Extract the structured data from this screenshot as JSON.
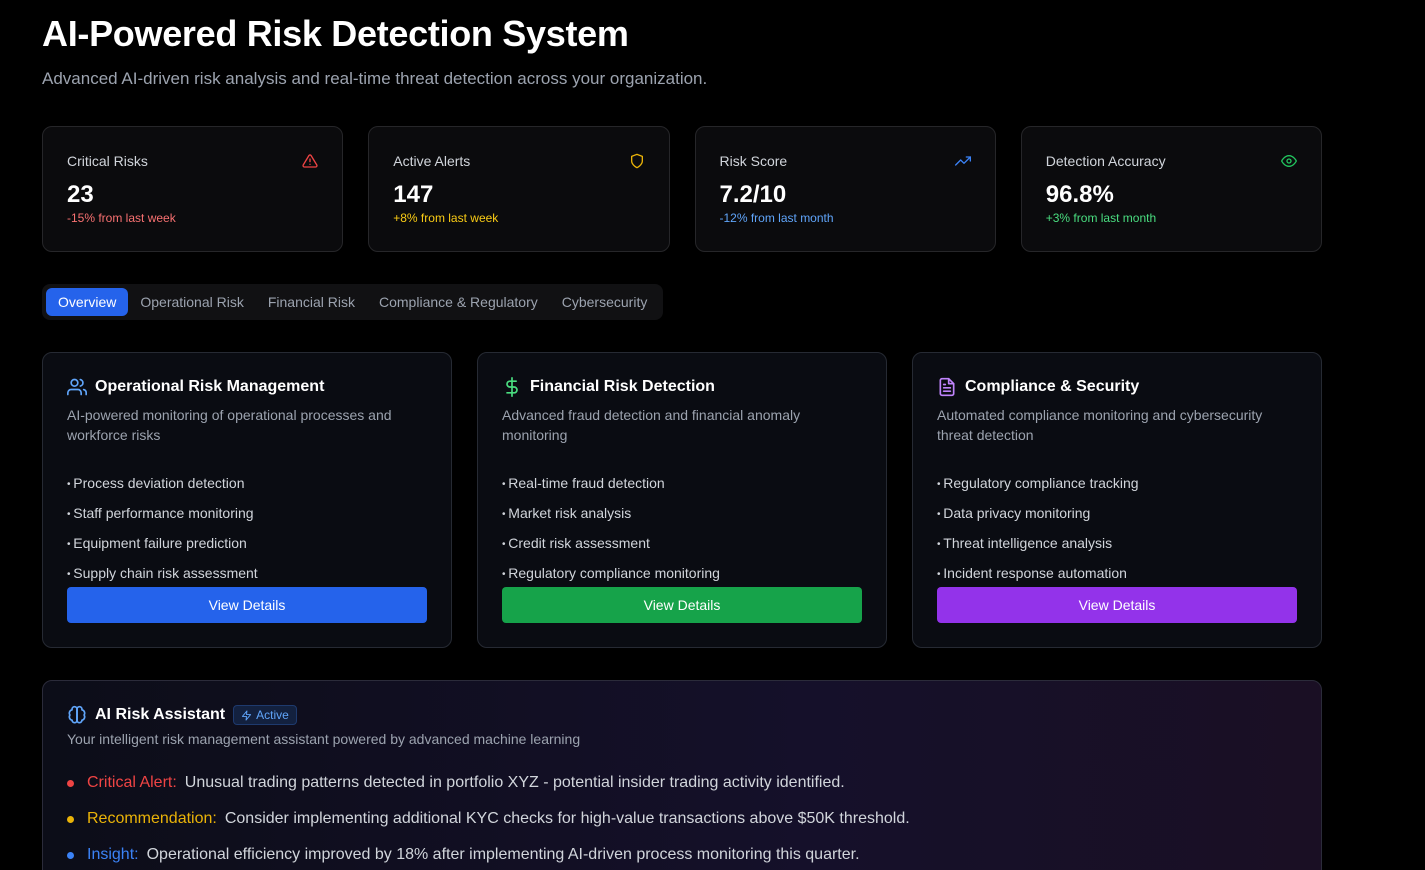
{
  "header": {
    "title": "AI-Powered Risk Detection System",
    "subtitle": "Advanced AI-driven risk analysis and real-time threat detection across your organization."
  },
  "stats": [
    {
      "label": "Critical Risks",
      "value": "23",
      "change": "-15% from last week",
      "icon": "alert-triangle-icon",
      "color": "#ef4444"
    },
    {
      "label": "Active Alerts",
      "value": "147",
      "change": "+8% from last week",
      "icon": "shield-icon",
      "color": "#eab308"
    },
    {
      "label": "Risk Score",
      "value": "7.2/10",
      "change": "-12% from last month",
      "icon": "trending-up-icon",
      "color": "#3b82f6"
    },
    {
      "label": "Detection Accuracy",
      "value": "96.8%",
      "change": "+3% from last month",
      "icon": "eye-icon",
      "color": "#22c55e"
    }
  ],
  "tabs": [
    {
      "label": "Overview",
      "active": true
    },
    {
      "label": "Operational Risk"
    },
    {
      "label": "Financial Risk"
    },
    {
      "label": "Compliance & Regulatory"
    },
    {
      "label": "Cybersecurity"
    }
  ],
  "cards": [
    {
      "title": "Operational Risk Management",
      "description": "AI-powered monitoring of operational processes and workforce risks",
      "icon": "users-icon",
      "accent": "#60a5fa",
      "button_color": "#2563eb",
      "items": [
        "Process deviation detection",
        "Staff performance monitoring",
        "Equipment failure prediction",
        "Supply chain risk assessment"
      ],
      "button_label": "View Details"
    },
    {
      "title": "Financial Risk Detection",
      "description": "Advanced fraud detection and financial anomaly monitoring",
      "icon": "dollar-icon",
      "accent": "#4ade80",
      "button_color": "#16a34a",
      "items": [
        "Real-time fraud detection",
        "Market risk analysis",
        "Credit risk assessment",
        "Regulatory compliance monitoring"
      ],
      "button_label": "View Details"
    },
    {
      "title": "Compliance & Security",
      "description": "Automated compliance monitoring and cybersecurity threat detection",
      "icon": "file-text-icon",
      "accent": "#c084fc",
      "button_color": "#9333ea",
      "items": [
        "Regulatory compliance tracking",
        "Data privacy monitoring",
        "Threat intelligence analysis",
        "Incident response automation"
      ],
      "button_label": "View Details"
    }
  ],
  "assistant": {
    "title": "AI Risk Assistant",
    "badge": "Active",
    "subtitle": "Your intelligent risk management assistant powered by advanced machine learning",
    "insights": [
      {
        "label": "Critical Alert:",
        "text": "Unusual trading patterns detected in portfolio XYZ - potential insider trading activity identified.",
        "color": "#ef4444"
      },
      {
        "label": "Recommendation:",
        "text": "Consider implementing additional KYC checks for high-value transactions above $50K threshold.",
        "color": "#eab308"
      },
      {
        "label": "Insight:",
        "text": "Operational efficiency improved by 18% after implementing AI-driven process monitoring this quarter.",
        "color": "#3b82f6"
      }
    ]
  }
}
